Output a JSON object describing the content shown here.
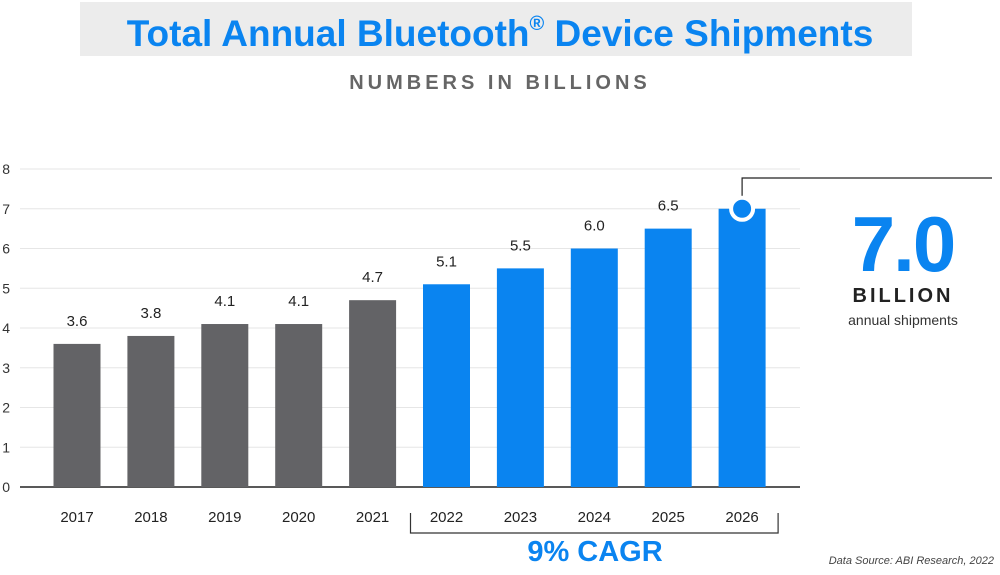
{
  "header": {
    "title": "Total Annual Bluetooth",
    "title_mark": "®",
    "title_end": " Device Shipments",
    "subtitle": "NUMBERS IN BILLIONS"
  },
  "callout": {
    "value": "7.0",
    "unit": "BILLION",
    "description": "annual shipments"
  },
  "cagr_label": "9% CAGR",
  "source": "Data Source: ABI Research, 2022",
  "colors": {
    "actual": "#636366",
    "forecast": "#0a84f0",
    "title": "#0a84f0",
    "grid": "#e6e6e6"
  },
  "chart_data": {
    "type": "bar",
    "title": "Total Annual Bluetooth® Device Shipments",
    "subtitle": "NUMBERS IN BILLIONS",
    "xlabel": "",
    "ylabel": "",
    "categories": [
      "2017",
      "2018",
      "2019",
      "2020",
      "2021",
      "2022",
      "2023",
      "2024",
      "2025",
      "2026"
    ],
    "values": [
      3.6,
      3.8,
      4.1,
      4.1,
      4.7,
      5.1,
      5.5,
      6.0,
      6.5,
      7.0
    ],
    "value_labels": [
      "3.6",
      "3.8",
      "4.1",
      "4.1",
      "4.7",
      "5.1",
      "5.5",
      "6.0",
      "6.5",
      ""
    ],
    "forecast_from": "2022",
    "ylim": [
      0,
      8
    ],
    "yticks": [
      "0",
      "1",
      "2",
      "3",
      "4",
      "5",
      "6",
      "7",
      "8"
    ],
    "grid": true,
    "legend": "none"
  }
}
